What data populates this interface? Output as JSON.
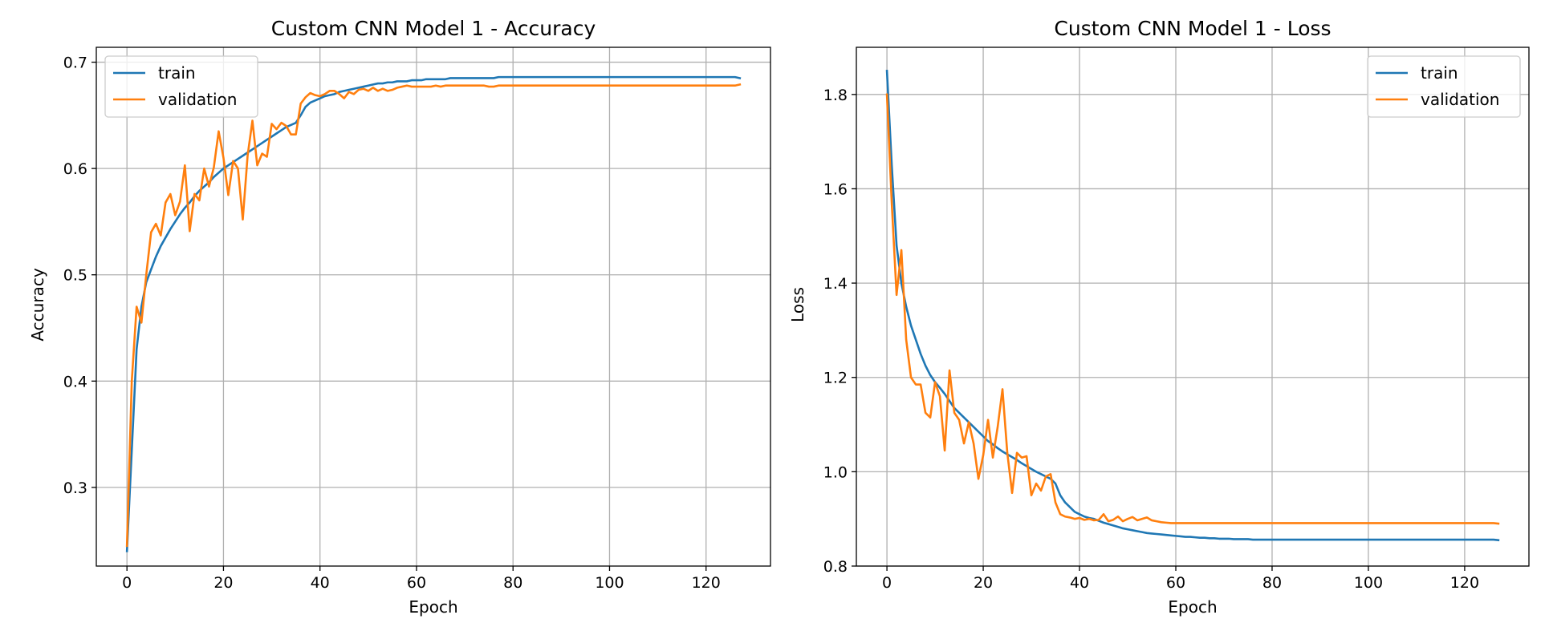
{
  "chart_data": [
    {
      "type": "line",
      "title": "Custom CNN Model 1 - Accuracy",
      "xlabel": "Epoch",
      "ylabel": "Accuracy",
      "xlim": [
        -6.35,
        133.35
      ],
      "ylim": [
        0.226,
        0.714
      ],
      "xticks": [
        0,
        20,
        40,
        60,
        80,
        100,
        120
      ],
      "yticks": [
        0.3,
        0.4,
        0.5,
        0.6,
        0.7
      ],
      "ytick_labels": [
        "0.3",
        "0.4",
        "0.5",
        "0.6",
        "0.7"
      ],
      "grid": true,
      "legend_position": "upper-left",
      "series": [
        {
          "name": "train",
          "color": "#1f77b4",
          "values": [
            0.24,
            0.335,
            0.43,
            0.47,
            0.493,
            0.505,
            0.517,
            0.527,
            0.535,
            0.543,
            0.55,
            0.557,
            0.563,
            0.568,
            0.574,
            0.579,
            0.583,
            0.587,
            0.592,
            0.596,
            0.6,
            0.603,
            0.606,
            0.609,
            0.612,
            0.615,
            0.618,
            0.621,
            0.624,
            0.627,
            0.63,
            0.633,
            0.636,
            0.639,
            0.641,
            0.643,
            0.65,
            0.658,
            0.662,
            0.664,
            0.666,
            0.668,
            0.669,
            0.67,
            0.672,
            0.673,
            0.674,
            0.675,
            0.676,
            0.677,
            0.678,
            0.679,
            0.68,
            0.68,
            0.681,
            0.681,
            0.682,
            0.682,
            0.682,
            0.683,
            0.683,
            0.683,
            0.684,
            0.684,
            0.684,
            0.684,
            0.684,
            0.685,
            0.685,
            0.685,
            0.685,
            0.685,
            0.685,
            0.685,
            0.685,
            0.685,
            0.685,
            0.686,
            0.686,
            0.686,
            0.686,
            0.686,
            0.686,
            0.686,
            0.686,
            0.686,
            0.686,
            0.686,
            0.686,
            0.686,
            0.686,
            0.686,
            0.686,
            0.686,
            0.686,
            0.686,
            0.686,
            0.686,
            0.686,
            0.686,
            0.686,
            0.686,
            0.686,
            0.686,
            0.686,
            0.686,
            0.686,
            0.686,
            0.686,
            0.686,
            0.686,
            0.686,
            0.686,
            0.686,
            0.686,
            0.686,
            0.686,
            0.686,
            0.686,
            0.686,
            0.686,
            0.686,
            0.686,
            0.686,
            0.686,
            0.686,
            0.686,
            0.685
          ]
        },
        {
          "name": "validation",
          "color": "#ff7f0e",
          "values": [
            0.245,
            0.4,
            0.47,
            0.455,
            0.5,
            0.54,
            0.548,
            0.537,
            0.568,
            0.576,
            0.556,
            0.569,
            0.603,
            0.541,
            0.576,
            0.57,
            0.6,
            0.583,
            0.601,
            0.635,
            0.61,
            0.575,
            0.607,
            0.6,
            0.552,
            0.612,
            0.645,
            0.603,
            0.614,
            0.611,
            0.642,
            0.637,
            0.643,
            0.64,
            0.632,
            0.632,
            0.661,
            0.667,
            0.671,
            0.669,
            0.668,
            0.67,
            0.673,
            0.673,
            0.67,
            0.666,
            0.672,
            0.67,
            0.674,
            0.675,
            0.673,
            0.676,
            0.673,
            0.675,
            0.673,
            0.674,
            0.676,
            0.677,
            0.678,
            0.677,
            0.677,
            0.677,
            0.677,
            0.677,
            0.678,
            0.677,
            0.678,
            0.678,
            0.678,
            0.678,
            0.678,
            0.678,
            0.678,
            0.678,
            0.678,
            0.677,
            0.677,
            0.678,
            0.678,
            0.678,
            0.678,
            0.678,
            0.678,
            0.678,
            0.678,
            0.678,
            0.678,
            0.678,
            0.678,
            0.678,
            0.678,
            0.678,
            0.678,
            0.678,
            0.678,
            0.678,
            0.678,
            0.678,
            0.678,
            0.678,
            0.678,
            0.678,
            0.678,
            0.678,
            0.678,
            0.678,
            0.678,
            0.678,
            0.678,
            0.678,
            0.678,
            0.678,
            0.678,
            0.678,
            0.678,
            0.678,
            0.678,
            0.678,
            0.678,
            0.678,
            0.678,
            0.678,
            0.678,
            0.678,
            0.678,
            0.678,
            0.678,
            0.679
          ]
        }
      ]
    },
    {
      "type": "line",
      "title": "Custom CNN Model 1 - Loss",
      "xlabel": "Epoch",
      "ylabel": "Loss",
      "xlim": [
        -6.35,
        133.35
      ],
      "ylim": [
        0.8,
        1.9
      ],
      "xticks": [
        0,
        20,
        40,
        60,
        80,
        100,
        120
      ],
      "yticks": [
        0.8,
        1.0,
        1.2,
        1.4,
        1.6,
        1.8
      ],
      "ytick_labels": [
        "0.8",
        "1.0",
        "1.2",
        "1.4",
        "1.6",
        "1.8"
      ],
      "grid": true,
      "legend_position": "upper-right",
      "series": [
        {
          "name": "train",
          "color": "#1f77b4",
          "values": [
            1.85,
            1.65,
            1.48,
            1.4,
            1.35,
            1.31,
            1.28,
            1.25,
            1.225,
            1.205,
            1.19,
            1.178,
            1.165,
            1.15,
            1.135,
            1.125,
            1.115,
            1.105,
            1.095,
            1.085,
            1.075,
            1.065,
            1.058,
            1.05,
            1.043,
            1.037,
            1.031,
            1.025,
            1.018,
            1.012,
            1.006,
            1.0,
            0.995,
            0.99,
            0.985,
            0.975,
            0.95,
            0.935,
            0.925,
            0.915,
            0.91,
            0.905,
            0.902,
            0.9,
            0.896,
            0.892,
            0.889,
            0.886,
            0.883,
            0.88,
            0.878,
            0.876,
            0.874,
            0.872,
            0.87,
            0.869,
            0.868,
            0.867,
            0.866,
            0.865,
            0.864,
            0.863,
            0.862,
            0.862,
            0.861,
            0.86,
            0.86,
            0.859,
            0.859,
            0.858,
            0.858,
            0.858,
            0.857,
            0.857,
            0.857,
            0.857,
            0.856,
            0.856,
            0.856,
            0.856,
            0.856,
            0.856,
            0.856,
            0.856,
            0.856,
            0.856,
            0.856,
            0.856,
            0.856,
            0.856,
            0.856,
            0.856,
            0.856,
            0.856,
            0.856,
            0.856,
            0.856,
            0.856,
            0.856,
            0.856,
            0.856,
            0.856,
            0.856,
            0.856,
            0.856,
            0.856,
            0.856,
            0.856,
            0.856,
            0.856,
            0.856,
            0.856,
            0.856,
            0.856,
            0.856,
            0.856,
            0.856,
            0.856,
            0.856,
            0.856,
            0.856,
            0.856,
            0.856,
            0.856,
            0.856,
            0.856,
            0.856,
            0.855
          ]
        },
        {
          "name": "validation",
          "color": "#ff7f0e",
          "values": [
            1.8,
            1.57,
            1.375,
            1.47,
            1.28,
            1.2,
            1.185,
            1.185,
            1.125,
            1.115,
            1.19,
            1.16,
            1.045,
            1.215,
            1.125,
            1.11,
            1.06,
            1.105,
            1.06,
            0.985,
            1.035,
            1.11,
            1.03,
            1.095,
            1.175,
            1.04,
            0.955,
            1.04,
            1.03,
            1.033,
            0.95,
            0.975,
            0.96,
            0.99,
            0.995,
            0.935,
            0.91,
            0.905,
            0.903,
            0.9,
            0.902,
            0.898,
            0.9,
            0.897,
            0.898,
            0.91,
            0.895,
            0.898,
            0.905,
            0.895,
            0.9,
            0.904,
            0.897,
            0.9,
            0.903,
            0.897,
            0.895,
            0.893,
            0.892,
            0.891,
            0.891,
            0.891,
            0.891,
            0.891,
            0.891,
            0.891,
            0.891,
            0.891,
            0.891,
            0.891,
            0.891,
            0.891,
            0.891,
            0.891,
            0.891,
            0.891,
            0.891,
            0.891,
            0.891,
            0.891,
            0.891,
            0.891,
            0.891,
            0.891,
            0.891,
            0.891,
            0.891,
            0.891,
            0.891,
            0.891,
            0.891,
            0.891,
            0.891,
            0.891,
            0.891,
            0.891,
            0.891,
            0.891,
            0.891,
            0.891,
            0.891,
            0.891,
            0.891,
            0.891,
            0.891,
            0.891,
            0.891,
            0.891,
            0.891,
            0.891,
            0.891,
            0.891,
            0.891,
            0.891,
            0.891,
            0.891,
            0.891,
            0.891,
            0.891,
            0.891,
            0.891,
            0.891,
            0.891,
            0.891,
            0.891,
            0.891,
            0.891,
            0.89
          ]
        }
      ]
    }
  ]
}
